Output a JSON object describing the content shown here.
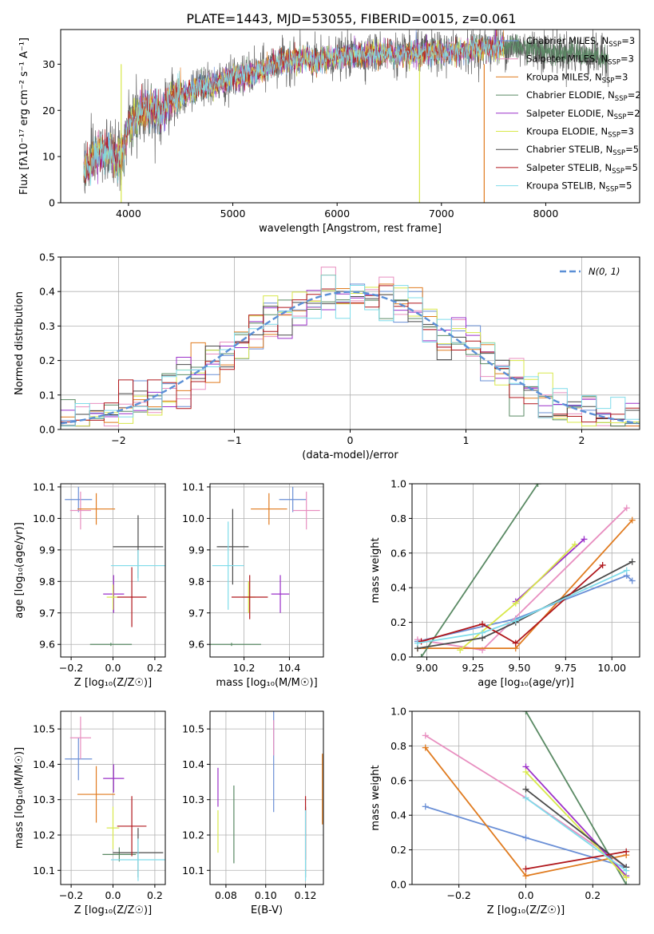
{
  "figure": {
    "title": "PLATE=1443, MJD=53055, FIBERID=0015, z=0.061"
  },
  "series": [
    {
      "name": "Chabrier MILES",
      "nssp": "3",
      "color": "#6a8fd6"
    },
    {
      "name": "Salpeter MILES",
      "nssp": "3",
      "color": "#e88fc0"
    },
    {
      "name": "Kroupa MILES",
      "nssp": "3",
      "color": "#e07b1f"
    },
    {
      "name": "Chabrier ELODIE",
      "nssp": "2",
      "color": "#5a8a64"
    },
    {
      "name": "Salpeter ELODIE",
      "nssp": "2",
      "color": "#9b30c9"
    },
    {
      "name": "Kroupa ELODIE",
      "nssp": "3",
      "color": "#d8e84a"
    },
    {
      "name": "Chabrier STELIB",
      "nssp": "5",
      "color": "#4a4a4a"
    },
    {
      "name": "Salpeter STELIB",
      "nssp": "5",
      "color": "#b0171c"
    },
    {
      "name": "Kroupa STELIB",
      "nssp": "5",
      "color": "#7fdcea"
    }
  ],
  "chart_data": [
    {
      "id": "spectrum",
      "type": "line",
      "xlabel": "wavelength [Angstrom, rest frame]",
      "ylabel": "Flux [fλ10⁻¹⁷ erg cm⁻² s⁻¹ A⁻¹]",
      "xlim": [
        3350,
        8900
      ],
      "ylim": [
        0,
        37.5
      ],
      "xticks": [
        4000,
        5000,
        6000,
        7000,
        8000
      ],
      "yticks": [
        0,
        10,
        20,
        30
      ],
      "grid": false,
      "legend": "right",
      "spectrum_continuum": {
        "x": [
          3570,
          3700,
          3800,
          3900,
          3950,
          4000,
          4100,
          4200,
          4300,
          4400,
          4500,
          4600,
          4700,
          4800,
          4900,
          5000,
          5100,
          5200,
          5300,
          5400,
          5500,
          5600,
          5700,
          5800,
          5900,
          6000,
          6200,
          6400,
          6600,
          6800,
          7000,
          7200,
          7400,
          7600,
          7800,
          8000,
          8200,
          8400,
          8600
        ],
        "y": [
          7,
          10.5,
          11,
          9.5,
          11,
          17,
          19,
          20.5,
          19.5,
          22,
          23.5,
          24,
          25,
          25.5,
          26,
          27,
          27.5,
          28,
          29,
          30,
          30.5,
          31,
          31,
          30.5,
          31,
          31.5,
          32,
          32.5,
          32,
          32.5,
          32.5,
          33,
          33.5,
          34,
          33.5,
          33,
          32.5,
          32,
          31
        ]
      },
      "annotations": "gaps near 3930 and 6790 and 7410"
    },
    {
      "id": "residuals",
      "type": "bar",
      "xlabel": "(data-model)/error",
      "ylabel": "Normed distribution",
      "xlim": [
        -2.5,
        2.5
      ],
      "ylim": [
        0,
        0.5
      ],
      "xticks": [
        -2,
        -1,
        0,
        1,
        2
      ],
      "yticks": [
        0,
        0.1,
        0.2,
        0.3,
        0.4,
        0.5
      ],
      "grid": true,
      "legend": "top-right",
      "legend_label": "N(0, 1)",
      "bin_width": 0.125,
      "model_curve": "standard normal"
    },
    {
      "id": "age-vs-Z",
      "type": "scatter",
      "xlabel": "Z [log₁₀(Z/Z☉)]",
      "ylabel": "age [log₁₀(age/yr)]",
      "xlim": [
        -0.25,
        0.25
      ],
      "ylim": [
        9.56,
        10.11
      ],
      "xticks": [
        -0.2,
        0.0,
        0.2
      ],
      "yticks": [
        9.6,
        9.7,
        9.8,
        9.9,
        10.0,
        10.1
      ],
      "grid": true,
      "points": [
        {
          "s": 0,
          "x": -0.165,
          "xerr": 0.065,
          "y": 10.06,
          "yerr": 0.04
        },
        {
          "s": 1,
          "x": -0.155,
          "xerr": 0.05,
          "y": 10.025,
          "yerr": 0.06
        },
        {
          "s": 2,
          "x": -0.08,
          "xerr": 0.09,
          "y": 10.03,
          "yerr": 0.05
        },
        {
          "s": 3,
          "x": -0.01,
          "xerr": 0.1,
          "y": 9.6,
          "yerr": 0.005
        },
        {
          "s": 4,
          "x": 0.003,
          "xerr": 0.05,
          "y": 9.76,
          "yerr": 0.06
        },
        {
          "s": 5,
          "x": 0.0,
          "xerr": 0.03,
          "y": 9.75,
          "yerr": 0.04
        },
        {
          "s": 6,
          "x": 0.12,
          "xerr": 0.12,
          "y": 9.91,
          "yerr": 0.1
        },
        {
          "s": 7,
          "x": 0.09,
          "xerr": 0.07,
          "y": 9.75,
          "yerr": 0.095
        },
        {
          "s": 8,
          "x": 0.12,
          "xerr": 0.13,
          "y": 9.85,
          "yerr": 0.05
        }
      ]
    },
    {
      "id": "age-vs-mass",
      "type": "scatter",
      "xlabel": "mass [log₁₀(M/M☉)]",
      "ylabel": "",
      "xlim": [
        10.05,
        10.55
      ],
      "ylim": [
        9.56,
        10.11
      ],
      "xticks": [
        10.2,
        10.4
      ],
      "yticks": [
        9.6,
        9.7,
        9.8,
        9.9,
        10.0,
        10.1
      ],
      "grid": true,
      "points": [
        {
          "s": 0,
          "x": 10.415,
          "xerr": 0.06,
          "y": 10.06,
          "yerr": 0.04
        },
        {
          "s": 1,
          "x": 10.475,
          "xerr": 0.06,
          "y": 10.025,
          "yerr": 0.06
        },
        {
          "s": 2,
          "x": 10.31,
          "xerr": 0.08,
          "y": 10.03,
          "yerr": 0.05
        },
        {
          "s": 3,
          "x": 10.145,
          "xerr": 0.13,
          "y": 9.6,
          "yerr": 0.005
        },
        {
          "s": 4,
          "x": 10.36,
          "xerr": 0.04,
          "y": 9.76,
          "yerr": 0.06
        },
        {
          "s": 5,
          "x": 10.22,
          "xerr": 0.03,
          "y": 9.75,
          "yerr": 0.05
        },
        {
          "s": 6,
          "x": 10.15,
          "xerr": 0.07,
          "y": 9.91,
          "yerr": 0.12
        },
        {
          "s": 7,
          "x": 10.225,
          "xerr": 0.08,
          "y": 9.75,
          "yerr": 0.07
        },
        {
          "s": 8,
          "x": 10.13,
          "xerr": 0.07,
          "y": 9.85,
          "yerr": 0.14
        }
      ]
    },
    {
      "id": "weight-vs-age",
      "type": "line",
      "xlabel": "age [log₁₀(age/yr)]",
      "ylabel": "mass weight",
      "xlim": [
        8.92,
        10.15
      ],
      "ylim": [
        0,
        1
      ],
      "xticks": [
        9.0,
        9.25,
        9.5,
        9.75,
        10.0
      ],
      "yticks": [
        0,
        0.2,
        0.4,
        0.6,
        0.8,
        1.0
      ],
      "grid": true,
      "lines": [
        {
          "s": 0,
          "x": [
            8.95,
            9.48,
            10.08,
            10.11
          ],
          "y": [
            0.09,
            0.22,
            0.47,
            0.44
          ]
        },
        {
          "s": 1,
          "x": [
            8.95,
            9.3,
            10.08
          ],
          "y": [
            0.1,
            0.04,
            0.86
          ]
        },
        {
          "s": 2,
          "x": [
            8.95,
            9.48,
            10.11
          ],
          "y": [
            0.05,
            0.05,
            0.79
          ]
        },
        {
          "s": 3,
          "x": [
            8.97,
            9.6
          ],
          "y": [
            0.0,
            1.0
          ]
        },
        {
          "s": 4,
          "x": [
            9.48,
            9.85
          ],
          "y": [
            0.32,
            0.68
          ]
        },
        {
          "s": 5,
          "x": [
            9.18,
            9.48,
            9.8
          ],
          "y": [
            0.04,
            0.31,
            0.65
          ]
        },
        {
          "s": 6,
          "x": [
            8.95,
            9.3,
            9.48,
            10.11
          ],
          "y": [
            0.05,
            0.11,
            0.2,
            0.55
          ]
        },
        {
          "s": 7,
          "x": [
            8.97,
            9.3,
            9.48,
            9.95
          ],
          "y": [
            0.09,
            0.19,
            0.08,
            0.53
          ]
        },
        {
          "s": 8,
          "x": [
            8.95,
            9.3,
            9.48,
            10.08
          ],
          "y": [
            0.08,
            0.14,
            0.21,
            0.5
          ]
        }
      ]
    },
    {
      "id": "mass-vs-Z",
      "type": "scatter",
      "xlabel": "Z [log₁₀(Z/Z☉)]",
      "ylabel": "mass [log₁₀(M/M☉)]",
      "xlim": [
        -0.25,
        0.25
      ],
      "ylim": [
        10.06,
        10.55
      ],
      "xticks": [
        -0.2,
        0.0,
        0.2
      ],
      "yticks": [
        10.1,
        10.2,
        10.3,
        10.4,
        10.5
      ],
      "grid": true,
      "points": [
        {
          "s": 0,
          "x": -0.165,
          "xerr": 0.065,
          "y": 10.415,
          "yerr": 0.06
        },
        {
          "s": 1,
          "x": -0.155,
          "xerr": 0.05,
          "y": 10.475,
          "yerr": 0.06
        },
        {
          "s": 2,
          "x": -0.08,
          "xerr": 0.09,
          "y": 10.315,
          "yerr": 0.08
        },
        {
          "s": 3,
          "x": 0.03,
          "xerr": 0.08,
          "y": 10.145,
          "yerr": 0.02
        },
        {
          "s": 4,
          "x": 0.003,
          "xerr": 0.05,
          "y": 10.36,
          "yerr": 0.04
        },
        {
          "s": 5,
          "x": 0.0,
          "xerr": 0.03,
          "y": 10.22,
          "yerr": 0.06
        },
        {
          "s": 6,
          "x": 0.12,
          "xerr": 0.12,
          "y": 10.15,
          "yerr": 0.07
        },
        {
          "s": 7,
          "x": 0.09,
          "xerr": 0.07,
          "y": 10.225,
          "yerr": 0.085
        },
        {
          "s": 8,
          "x": 0.12,
          "xerr": 0.13,
          "y": 10.13,
          "yerr": 0.06
        }
      ]
    },
    {
      "id": "mass-vs-ebv",
      "type": "scatter",
      "xlabel": "E(B-V)",
      "ylabel": "",
      "xlim": [
        0.072,
        0.129
      ],
      "ylim": [
        10.06,
        10.55
      ],
      "xticks": [
        0.08,
        0.1,
        0.12
      ],
      "yticks": [
        10.1,
        10.2,
        10.3,
        10.4,
        10.5
      ],
      "grid": true,
      "points": [
        {
          "s": 0,
          "x": 0.104,
          "xerr": 0,
          "y": 10.415,
          "yerr": 0.15
        },
        {
          "s": 1,
          "x": 0.104,
          "xerr": 0,
          "y": 10.475,
          "yerr": 0.05
        },
        {
          "s": 2,
          "x": 0.1285,
          "xerr": 0,
          "y": 10.33,
          "yerr": 0.1
        },
        {
          "s": 3,
          "x": 0.084,
          "xerr": 0,
          "y": 10.23,
          "yerr": 0.11
        },
        {
          "s": 4,
          "x": 0.076,
          "xerr": 0,
          "y": 10.335,
          "yerr": 0.055
        },
        {
          "s": 5,
          "x": 0.076,
          "xerr": 0,
          "y": 10.21,
          "yerr": 0.06
        },
        {
          "s": 6,
          "x": 0.12,
          "xerr": 0,
          "y": 10.18,
          "yerr": 0.1
        },
        {
          "s": 7,
          "x": 0.12,
          "xerr": 0,
          "y": 10.22,
          "yerr": 0.09
        },
        {
          "s": 8,
          "x": 0.12,
          "xerr": 0,
          "y": 10.17,
          "yerr": 0.1
        }
      ]
    },
    {
      "id": "weight-vs-Z",
      "type": "line",
      "xlabel": "Z [log₁₀(Z/Z☉)]",
      "ylabel": "mass weight",
      "xlim": [
        -0.34,
        0.34
      ],
      "ylim": [
        0,
        1
      ],
      "xticks": [
        -0.2,
        0.0,
        0.2
      ],
      "yticks": [
        0,
        0.2,
        0.4,
        0.6,
        0.8,
        1.0
      ],
      "grid": true,
      "lines": [
        {
          "s": 0,
          "x": [
            -0.3,
            0.0,
            0.3
          ],
          "y": [
            0.45,
            0.27,
            0.1
          ]
        },
        {
          "s": 1,
          "x": [
            -0.3,
            0.0,
            0.3
          ],
          "y": [
            0.86,
            0.5,
            0.1
          ]
        },
        {
          "s": 2,
          "x": [
            -0.3,
            0.0,
            0.3
          ],
          "y": [
            0.79,
            0.05,
            0.17
          ]
        },
        {
          "s": 3,
          "x": [
            0.0,
            0.3
          ],
          "y": [
            1.0,
            0.0
          ]
        },
        {
          "s": 4,
          "x": [
            0.0,
            0.3
          ],
          "y": [
            0.68,
            0.05
          ]
        },
        {
          "s": 5,
          "x": [
            0.0,
            0.3
          ],
          "y": [
            0.65,
            0.04
          ]
        },
        {
          "s": 6,
          "x": [
            0.0,
            0.3
          ],
          "y": [
            0.55,
            0.1
          ]
        },
        {
          "s": 7,
          "x": [
            0.0,
            0.3
          ],
          "y": [
            0.09,
            0.19
          ]
        },
        {
          "s": 8,
          "x": [
            0.0,
            0.3
          ],
          "y": [
            0.5,
            0.08
          ]
        }
      ]
    }
  ]
}
